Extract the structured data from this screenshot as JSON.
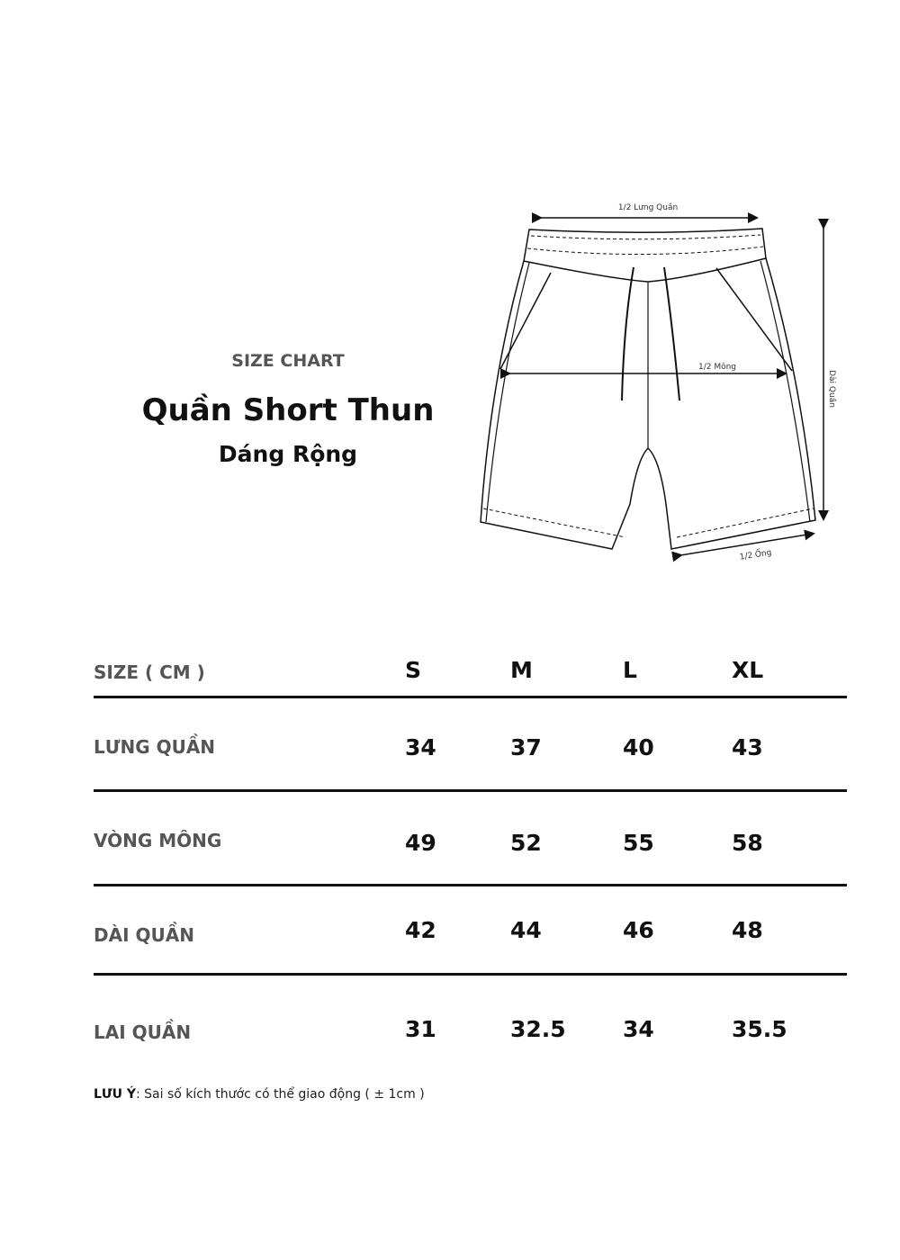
{
  "header": {
    "kicker": "SIZE CHART",
    "title": "Quần Short Thun",
    "subtitle": "Dáng Rộng"
  },
  "diagram": {
    "waist_label": "1/2 Lưng Quần",
    "hip_label": "1/2 Mông",
    "length_label": "Dài Quần",
    "leg_label": "1/2 Ống"
  },
  "table": {
    "header": {
      "label": "SIZE ( CM )",
      "sizes": [
        "S",
        "M",
        "L",
        "XL"
      ]
    },
    "rows": [
      {
        "label": "LƯNG QUẦN",
        "values": [
          "34",
          "37",
          "40",
          "43"
        ]
      },
      {
        "label": "VÒNG MÔNG",
        "values": [
          "49",
          "52",
          "55",
          "58"
        ]
      },
      {
        "label": "DÀI QUẦN",
        "values": [
          "42",
          "44",
          "46",
          "48"
        ]
      },
      {
        "label": "LAI QUẦN",
        "values": [
          "31",
          "32.5",
          "34",
          "35.5"
        ]
      }
    ]
  },
  "note": {
    "label": "LƯU Ý",
    "text": ": Sai số kích thước có thể giao động ( ± 1cm )"
  }
}
